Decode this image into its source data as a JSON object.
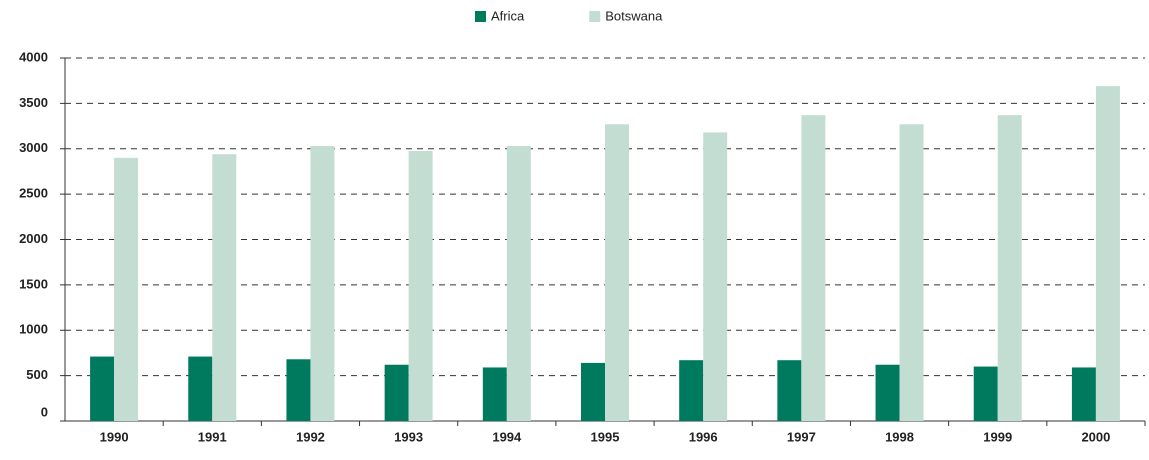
{
  "chart_data": {
    "type": "bar",
    "categories": [
      "1990",
      "1991",
      "1992",
      "1993",
      "1994",
      "1995",
      "1996",
      "1997",
      "1998",
      "1999",
      "2000"
    ],
    "series": [
      {
        "name": "Africa",
        "color": "#007a5e",
        "values": [
          710,
          710,
          680,
          620,
          590,
          640,
          670,
          670,
          620,
          600,
          590
        ]
      },
      {
        "name": "Botswana",
        "color": "#c3ddd3",
        "values": [
          2900,
          2940,
          3030,
          2975,
          3030,
          3270,
          3180,
          3370,
          3270,
          3370,
          3690
        ]
      }
    ],
    "ylim": [
      0,
      4000
    ],
    "yticks": [
      0,
      500,
      1000,
      1500,
      2000,
      2500,
      3000,
      3500,
      4000
    ],
    "grid": true,
    "legend": "top"
  }
}
